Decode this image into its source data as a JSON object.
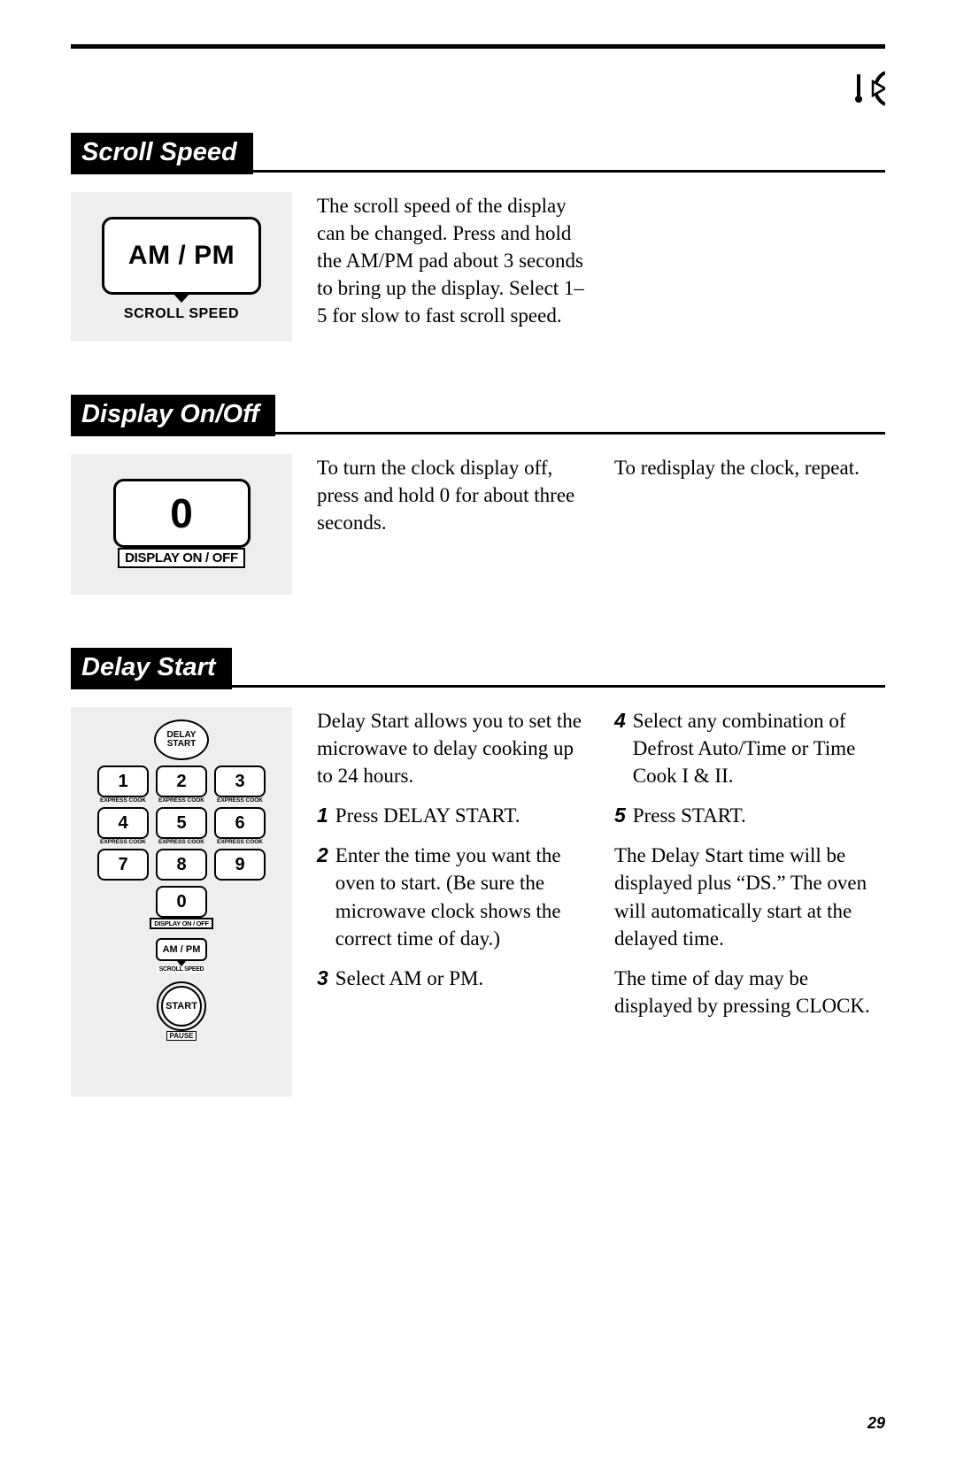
{
  "page_number": "29",
  "top_icon": {
    "name": "tab-icon"
  },
  "sections": {
    "scroll_speed": {
      "title": "Scroll Speed",
      "button_label": "AM / PM",
      "sub_label": "SCROLL SPEED",
      "body_col1": "The scroll speed of the display can be changed. Press and hold the AM/PM pad about 3 seconds to bring up the display. Select 1–5 for slow to fast scroll speed."
    },
    "display_onoff": {
      "title": "Display On/Off",
      "button_label": "0",
      "sub_label": "DISPLAY ON / OFF",
      "body_col1": "To turn the clock display off, press and hold 0 for about three seconds.",
      "body_col2": "To redisplay the clock, repeat."
    },
    "delay_start": {
      "title": "Delay Start",
      "keypad": {
        "delay_start_label_l1": "DELAY",
        "delay_start_label_l2": "START",
        "keys": [
          {
            "n": "1",
            "ec": "EXPRESS COOK"
          },
          {
            "n": "2",
            "ec": "EXPRESS COOK"
          },
          {
            "n": "3",
            "ec": "EXPRESS COOK"
          },
          {
            "n": "4",
            "ec": "EXPRESS COOK"
          },
          {
            "n": "5",
            "ec": "EXPRESS COOK"
          },
          {
            "n": "6",
            "ec": "EXPRESS COOK"
          },
          {
            "n": "7",
            "ec": ""
          },
          {
            "n": "8",
            "ec": ""
          },
          {
            "n": "9",
            "ec": ""
          }
        ],
        "zero": "0",
        "display_label": "DISPLAY ON / OFF",
        "ampm_label": "AM / PM",
        "scroll_label": "SCROLL SPEED",
        "start_label": "START",
        "pause_label": "PAUSE"
      },
      "intro": "Delay Start allows you to set the microwave to delay cooking up to 24 hours.",
      "steps_col1": [
        {
          "n": "1",
          "t": "Press DELAY START."
        },
        {
          "n": "2",
          "t": "Enter the time you want the oven to start. (Be sure the microwave clock shows the correct time of day.)"
        },
        {
          "n": "3",
          "t": "Select AM or PM."
        }
      ],
      "steps_col2": [
        {
          "n": "4",
          "t": "Select any combination of Defrost Auto/Time or Time Cook I & II."
        },
        {
          "n": "5",
          "t": "Press START."
        }
      ],
      "after_col2": [
        "The Delay Start time will be displayed plus “DS.” The oven will automatically start at the delayed time.",
        "The time of day may be displayed by pressing CLOCK."
      ]
    }
  }
}
